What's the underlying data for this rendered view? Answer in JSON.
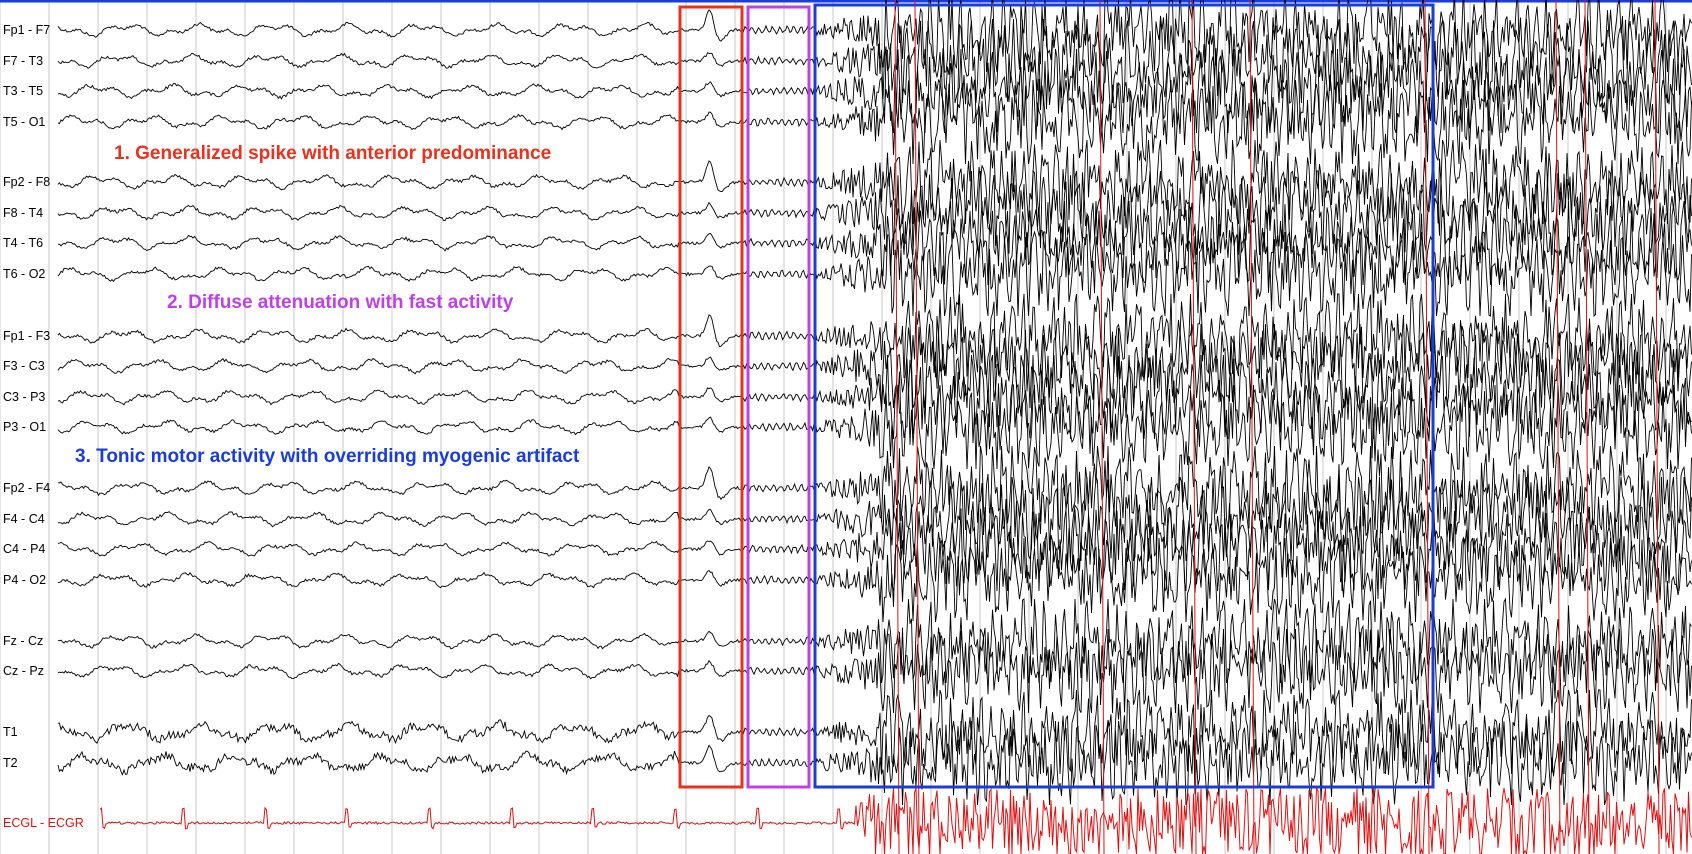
{
  "channels": [
    "Fp1 - F7",
    "F7 - T3",
    "T3 - T5",
    "T5 - O1",
    "Fp2 - F8",
    "F8 - T4",
    "T4 - T6",
    "T6 - O2",
    "Fp1 - F3",
    "F3 - C3",
    "C3 - P3",
    "P3 - O1",
    "Fp2 - F4",
    "F4 - C4",
    "C4 - P4",
    "P4 - O2",
    "Fz - Cz",
    "Cz - Pz",
    "T1",
    "T2",
    "ECGL - ECGR"
  ],
  "annotations": [
    {
      "text": "1. Generalized spike with anterior predominance",
      "color": "#e8321e"
    },
    {
      "text": "2. Diffuse attenuation with fast activity",
      "color": "#c040e8"
    },
    {
      "text": "3. Tonic motor activity with overriding myogenic artifact",
      "color": "#1a3cd8"
    }
  ],
  "colors": {
    "trace": "#000000",
    "ecg_trace": "#e01010",
    "gridline": "#c8c8c8",
    "box_spike": "#e8321e",
    "box_attenuation": "#c040e8",
    "box_tonic": "#1a3cd8"
  }
}
